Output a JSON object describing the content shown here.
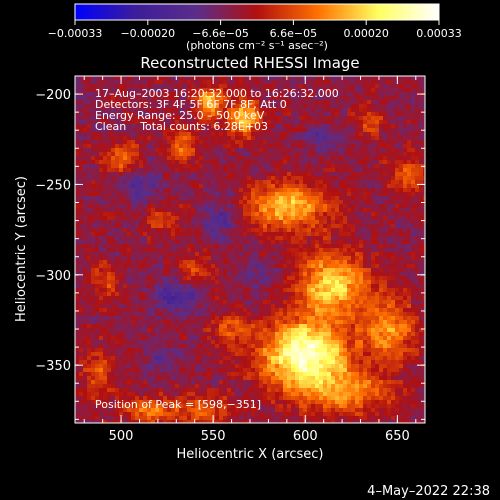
{
  "chart_data": {
    "type": "heatmap",
    "title": "Reconstructed RHESSI Image",
    "xlabel": "Heliocentric X (arcsec)",
    "ylabel": "Heliocentric Y (arcsec)",
    "xlim": [
      475,
      665
    ],
    "ylim": [
      -382,
      -190
    ],
    "xticks": [
      500,
      550,
      600,
      650
    ],
    "yticks": [
      -200,
      -250,
      -300,
      -350
    ],
    "xtick_labels": [
      "500",
      "550",
      "600",
      "650"
    ],
    "ytick_labels": [
      "−200",
      "−250",
      "−300",
      "−350"
    ],
    "colorbar": {
      "range": [
        -0.00033,
        0.00033
      ],
      "tick_labels": [
        "−0.00033",
        "−0.00020",
        "−6.6e−05",
        "6.6e−05",
        "0.00020",
        "0.00033"
      ],
      "unit_label": "(photons cm⁻² s⁻¹ asec⁻²)",
      "colors": [
        "#0000ff",
        "#3c1d9a",
        "#5a2d8a",
        "#b01010",
        "#ff7000",
        "#ffff60",
        "#ffffff"
      ]
    },
    "annotations": [
      "17–Aug–2003 16:20:32.000 to 16:26:32.000",
      "Detectors: 3F 4F 5F 6F 7F 8F, Att 0",
      "Energy Range: 25.0 – 50.0 keV",
      "Clean    Total counts: 6.28E+03",
      "Position of Peak = [598,−351]"
    ],
    "peak": {
      "x": 598,
      "y": -351
    },
    "blobs": [
      {
        "x": 600,
        "y": -345,
        "amp": 0.00034,
        "sx": 16,
        "sy": 14
      },
      {
        "x": 615,
        "y": -305,
        "amp": 0.00024,
        "sx": 13,
        "sy": 12
      },
      {
        "x": 590,
        "y": -262,
        "amp": 0.00022,
        "sx": 16,
        "sy": 9
      },
      {
        "x": 645,
        "y": -330,
        "amp": 0.00018,
        "sx": 10,
        "sy": 12
      },
      {
        "x": 625,
        "y": -365,
        "amp": 0.00016,
        "sx": 14,
        "sy": 8
      },
      {
        "x": 548,
        "y": -205,
        "amp": 0.00022,
        "sx": 5,
        "sy": 6
      },
      {
        "x": 567,
        "y": -213,
        "amp": 0.0002,
        "sx": 6,
        "sy": 8
      },
      {
        "x": 533,
        "y": -228,
        "amp": 0.00015,
        "sx": 5,
        "sy": 6
      },
      {
        "x": 500,
        "y": -235,
        "amp": 0.00014,
        "sx": 7,
        "sy": 6
      },
      {
        "x": 515,
        "y": -375,
        "amp": 0.00014,
        "sx": 10,
        "sy": 5
      },
      {
        "x": 545,
        "y": -375,
        "amp": 0.00013,
        "sx": 10,
        "sy": 6
      },
      {
        "x": 487,
        "y": -355,
        "amp": 0.00011,
        "sx": 6,
        "sy": 10
      },
      {
        "x": 540,
        "y": -295,
        "amp": 9e-05,
        "sx": 6,
        "sy": 6
      },
      {
        "x": 560,
        "y": -330,
        "amp": 0.00011,
        "sx": 8,
        "sy": 6
      },
      {
        "x": 655,
        "y": -245,
        "amp": 0.00011,
        "sx": 7,
        "sy": 9
      },
      {
        "x": 635,
        "y": -215,
        "amp": 8e-05,
        "sx": 6,
        "sy": 6
      },
      {
        "x": 523,
        "y": -270,
        "amp": 8e-05,
        "sx": 7,
        "sy": 6
      },
      {
        "x": 492,
        "y": -303,
        "amp": 0.0001,
        "sx": 6,
        "sy": 7
      },
      {
        "x": 530,
        "y": -313,
        "amp": -0.00013,
        "sx": 8,
        "sy": 6
      },
      {
        "x": 555,
        "y": -268,
        "amp": -9e-05,
        "sx": 9,
        "sy": 8
      },
      {
        "x": 510,
        "y": -250,
        "amp": -8e-05,
        "sx": 7,
        "sy": 7
      },
      {
        "x": 610,
        "y": -225,
        "amp": -7e-05,
        "sx": 7,
        "sy": 6
      },
      {
        "x": 575,
        "y": -300,
        "amp": -7e-05,
        "sx": 6,
        "sy": 6
      },
      {
        "x": 520,
        "y": -345,
        "amp": -6e-05,
        "sx": 8,
        "sy": 6
      }
    ]
  },
  "footer": {
    "timestamp": "4–May–2022 22:38"
  }
}
